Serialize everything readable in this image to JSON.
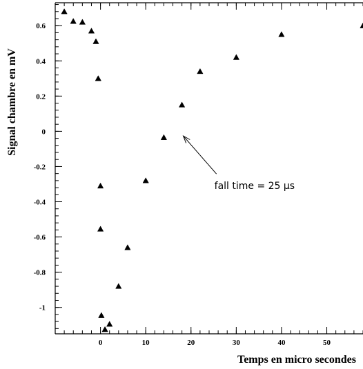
{
  "chart_data": {
    "type": "scatter",
    "title": "",
    "xlabel": "Temps en micro secondes",
    "ylabel": "Signal chambre en mV",
    "xlim": [
      -10,
      58
    ],
    "ylim": [
      -1.15,
      0.73
    ],
    "x_ticks": [
      {
        "value": 0,
        "label": "0"
      },
      {
        "value": 10,
        "label": "10"
      },
      {
        "value": 20,
        "label": "20"
      },
      {
        "value": 30,
        "label": "30"
      },
      {
        "value": 40,
        "label": "40"
      },
      {
        "value": 50,
        "label": "50"
      }
    ],
    "y_ticks": [
      {
        "value": 0.6,
        "label": "0.6"
      },
      {
        "value": 0.4,
        "label": "0.4"
      },
      {
        "value": 0.2,
        "label": "0.2"
      },
      {
        "value": 0,
        "label": "0"
      },
      {
        "value": -0.2,
        "label": "-0.2"
      },
      {
        "value": -0.4,
        "label": "-0.4"
      },
      {
        "value": -0.6,
        "label": "-0.6"
      },
      {
        "value": -0.8,
        "label": "-0.8"
      },
      {
        "value": -1,
        "label": "-1"
      }
    ],
    "marker": "triangle",
    "grid": false,
    "points": [
      {
        "x": -8,
        "y": 0.68
      },
      {
        "x": -6,
        "y": 0.625
      },
      {
        "x": -4,
        "y": 0.62
      },
      {
        "x": -2,
        "y": 0.57
      },
      {
        "x": -1,
        "y": 0.51
      },
      {
        "x": -0.5,
        "y": 0.3
      },
      {
        "x": 0,
        "y": -0.31
      },
      {
        "x": 0,
        "y": -0.555
      },
      {
        "x": 0.2,
        "y": -1.045
      },
      {
        "x": 1,
        "y": -1.125
      },
      {
        "x": 2,
        "y": -1.095
      },
      {
        "x": 4,
        "y": -0.88
      },
      {
        "x": 6,
        "y": -0.66
      },
      {
        "x": 10,
        "y": -0.28
      },
      {
        "x": 14,
        "y": -0.035
      },
      {
        "x": 18,
        "y": 0.15
      },
      {
        "x": 22,
        "y": 0.34
      },
      {
        "x": 30,
        "y": 0.42
      },
      {
        "x": 40,
        "y": 0.55
      },
      {
        "x": 58,
        "y": 0.6
      }
    ],
    "annotation": {
      "text": "fall time = 25 μs",
      "arrow_target": {
        "x": 18,
        "y": -0.05
      }
    }
  }
}
